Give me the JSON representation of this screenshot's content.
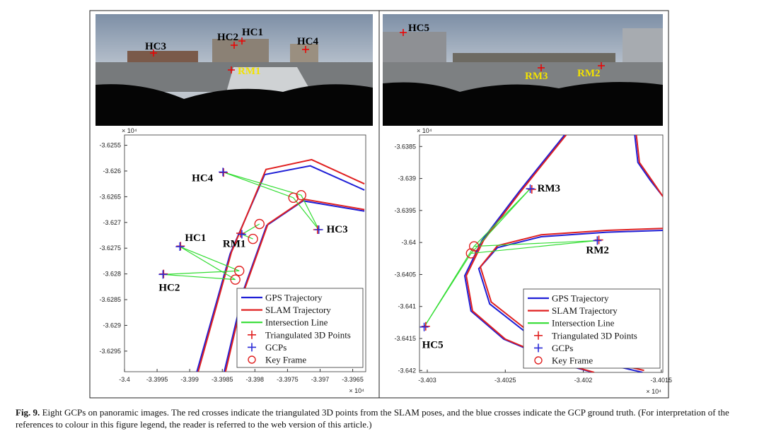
{
  "panoramas": [
    {
      "labels": [
        "HC3",
        "HC2",
        "HC1",
        "HC4",
        "RM1"
      ]
    },
    {
      "labels": [
        "HC5",
        "RM3",
        "RM2"
      ]
    }
  ],
  "chart_data": [
    {
      "type": "line",
      "x_multiplier": "× 10⁴",
      "y_multiplier": "× 10⁴",
      "xlim": [
        -3.4,
        -3.3963
      ],
      "ylim": [
        -3.6299,
        -3.6253
      ],
      "xticks": [
        -3.4,
        -3.3995,
        -3.399,
        -3.3985,
        -3.398,
        -3.3975,
        -3.397,
        -3.3965
      ],
      "yticks": [
        -3.6255,
        -3.626,
        -3.6265,
        -3.627,
        -3.6275,
        -3.628,
        -3.6285,
        -3.629,
        -3.6295
      ],
      "legend": "lower right",
      "series": [
        {
          "name": "GPS Trajectory",
          "color": "#1f1fd6",
          "marker": "none",
          "x": [
            -3.39889,
            -3.39838,
            -3.39785,
            -3.39715,
            -3.39632,
            null,
            -3.39847,
            -3.39817,
            -3.39782,
            -3.39726,
            -3.39632
          ],
          "values": [
            -3.6299,
            -3.62761,
            -3.62607,
            -3.6259,
            -3.62637,
            null,
            -3.6299,
            -3.6283,
            -3.62706,
            -3.62658,
            -3.62678
          ]
        },
        {
          "name": "SLAM Trajectory",
          "color": "#e02020",
          "marker": "none",
          "x": [
            -3.39887,
            -3.39836,
            -3.39783,
            -3.39713,
            -3.39632,
            null,
            -3.39845,
            -3.39815,
            -3.3978,
            -3.39724,
            -3.39632
          ],
          "values": [
            -3.6299,
            -3.62758,
            -3.62597,
            -3.62578,
            -3.62625,
            null,
            -3.6299,
            -3.62827,
            -3.62703,
            -3.62655,
            -3.62675
          ]
        },
        {
          "name": "Intersection Line",
          "color": "#33dd33",
          "marker": "none",
          "x": [
            -3.39849,
            -3.39741,
            null,
            -3.39849,
            -3.39729,
            null,
            -3.39702,
            -3.39741,
            null,
            -3.39702,
            -3.39729,
            null,
            -3.3982,
            -3.39793,
            null,
            -3.3982,
            -3.39803,
            null,
            -3.39915,
            -3.39824,
            null,
            -3.39915,
            -3.3983,
            null,
            -3.39941,
            -3.39824,
            null,
            -3.39941,
            -3.3983
          ],
          "values": [
            -3.62602,
            -3.62652,
            null,
            -3.62602,
            -3.62647,
            null,
            -3.62714,
            -3.62652,
            null,
            -3.62714,
            -3.62647,
            null,
            -3.62723,
            -3.62703,
            null,
            -3.62723,
            -3.62732,
            null,
            -3.62747,
            -3.62794,
            null,
            -3.62747,
            -3.62811,
            null,
            -3.62801,
            -3.62794,
            null,
            -3.62801,
            -3.62811
          ]
        },
        {
          "name": "Triangulated 3D Points",
          "color": "#e02020",
          "marker": "+",
          "x": [
            -3.39848,
            -3.39704,
            -3.39914,
            -3.3994,
            -3.39822
          ],
          "values": [
            -3.62603,
            -3.62714,
            -3.62746,
            -3.628,
            -3.62721
          ]
        },
        {
          "name": "GCPs",
          "color": "#2a2ad6",
          "marker": "+",
          "x": [
            -3.39849,
            -3.39702,
            -3.39915,
            -3.39941,
            -3.3982
          ],
          "values": [
            -3.62602,
            -3.62714,
            -3.62747,
            -3.62801,
            -3.62723
          ],
          "labels": [
            "HC4",
            "HC3",
            "HC1",
            "HC2",
            "RM1"
          ]
        },
        {
          "name": "Key Frame",
          "color": "#e02020",
          "marker": "o",
          "x": [
            -3.39741,
            -3.39729,
            -3.39793,
            -3.39803,
            -3.39824,
            -3.3983
          ],
          "values": [
            -3.62652,
            -3.62647,
            -3.62703,
            -3.62732,
            -3.62794,
            -3.62811
          ]
        }
      ]
    },
    {
      "type": "line",
      "x_multiplier": "× 10⁴",
      "y_multiplier": "× 10⁴",
      "xlim": [
        -3.40305,
        -3.40149
      ],
      "ylim": [
        -3.64203,
        -3.63832
      ],
      "xticks": [
        -3.403,
        -3.4025,
        -3.402,
        -3.4015
      ],
      "yticks": [
        -3.6385,
        -3.639,
        -3.6395,
        -3.64,
        -3.6405,
        -3.641,
        -3.6415,
        -3.642
      ],
      "legend": "lower right",
      "series": [
        {
          "name": "GPS Trajectory",
          "color": "#1f1fd6",
          "marker": "none",
          "x": [
            -3.40212,
            -3.40241,
            -3.40265,
            -3.40276,
            -3.40272,
            -3.40251,
            -3.40213,
            -3.40194,
            null,
            -3.40149,
            -3.40185,
            -3.40227,
            -3.40255,
            -3.40267,
            -3.4026,
            -3.40237,
            -3.40199,
            -3.40162,
            null,
            -3.40167,
            -3.40165,
            -3.40157,
            -3.40149
          ],
          "values": [
            -3.63832,
            -3.6392,
            -3.63997,
            -3.64052,
            -3.64107,
            -3.64151,
            -3.6419,
            -3.64203,
            null,
            -3.63981,
            -3.63984,
            -3.63991,
            -3.64008,
            -3.64041,
            -3.64096,
            -3.6414,
            -3.64182,
            -3.64203,
            null,
            -3.63832,
            -3.63875,
            -3.63903,
            -3.63928
          ]
        },
        {
          "name": "SLAM Trajectory",
          "color": "#e02020",
          "marker": "none",
          "x": [
            -3.40211,
            -3.4024,
            -3.40264,
            -3.40275,
            -3.40271,
            -3.4025,
            -3.40212,
            -3.40193,
            null,
            -3.40149,
            -3.40185,
            -3.40227,
            -3.40255,
            -3.40266,
            -3.40259,
            -3.40236,
            -3.40198,
            -3.40161,
            null,
            -3.40166,
            -3.40164,
            -3.40156,
            -3.40149
          ],
          "values": [
            -3.63832,
            -3.6392,
            -3.63997,
            -3.64052,
            -3.64107,
            -3.64151,
            -3.6419,
            -3.64203,
            null,
            -3.63978,
            -3.63981,
            -3.63988,
            -3.64005,
            -3.64038,
            -3.64093,
            -3.64137,
            -3.64179,
            -3.642,
            null,
            -3.63832,
            -3.63875,
            -3.63903,
            -3.63928
          ]
        },
        {
          "name": "Intersection Line",
          "color": "#33dd33",
          "marker": "none",
          "x": [
            -3.40302,
            -3.4027,
            null,
            -3.40302,
            -3.40272,
            null,
            -3.40234,
            -3.4027,
            null,
            -3.40234,
            -3.40272,
            null,
            -3.40191,
            -3.4027,
            null,
            -3.40191,
            -3.40272
          ],
          "values": [
            -3.64132,
            -3.64006,
            null,
            -3.64132,
            -3.64017,
            null,
            -3.63916,
            -3.64006,
            null,
            -3.63916,
            -3.64017,
            null,
            -3.63997,
            -3.64006,
            null,
            -3.63997,
            -3.64017
          ]
        },
        {
          "name": "Triangulated 3D Points",
          "color": "#e02020",
          "marker": "+",
          "x": [
            -3.40301,
            -3.40233,
            -3.4019
          ],
          "values": [
            -3.64131,
            -3.63917,
            -3.63996
          ]
        },
        {
          "name": "GCPs",
          "color": "#2a2ad6",
          "marker": "+",
          "x": [
            -3.40302,
            -3.40234,
            -3.40191
          ],
          "values": [
            -3.64132,
            -3.63916,
            -3.63997
          ],
          "labels": [
            "HC5",
            "RM3",
            "RM2"
          ]
        },
        {
          "name": "Key Frame",
          "color": "#e02020",
          "marker": "o",
          "x": [
            -3.4027,
            -3.40272
          ],
          "values": [
            -3.64006,
            -3.64017
          ]
        }
      ]
    }
  ],
  "caption": {
    "label": "Fig. 9.",
    "text": "Eight GCPs on panoramic images. The red crosses indicate the triangulated 3D points from the SLAM poses, and the blue crosses indicate the GCP ground truth. (For interpretation of the references to colour in this figure legend, the reader is referred to the web version of this article.)"
  }
}
